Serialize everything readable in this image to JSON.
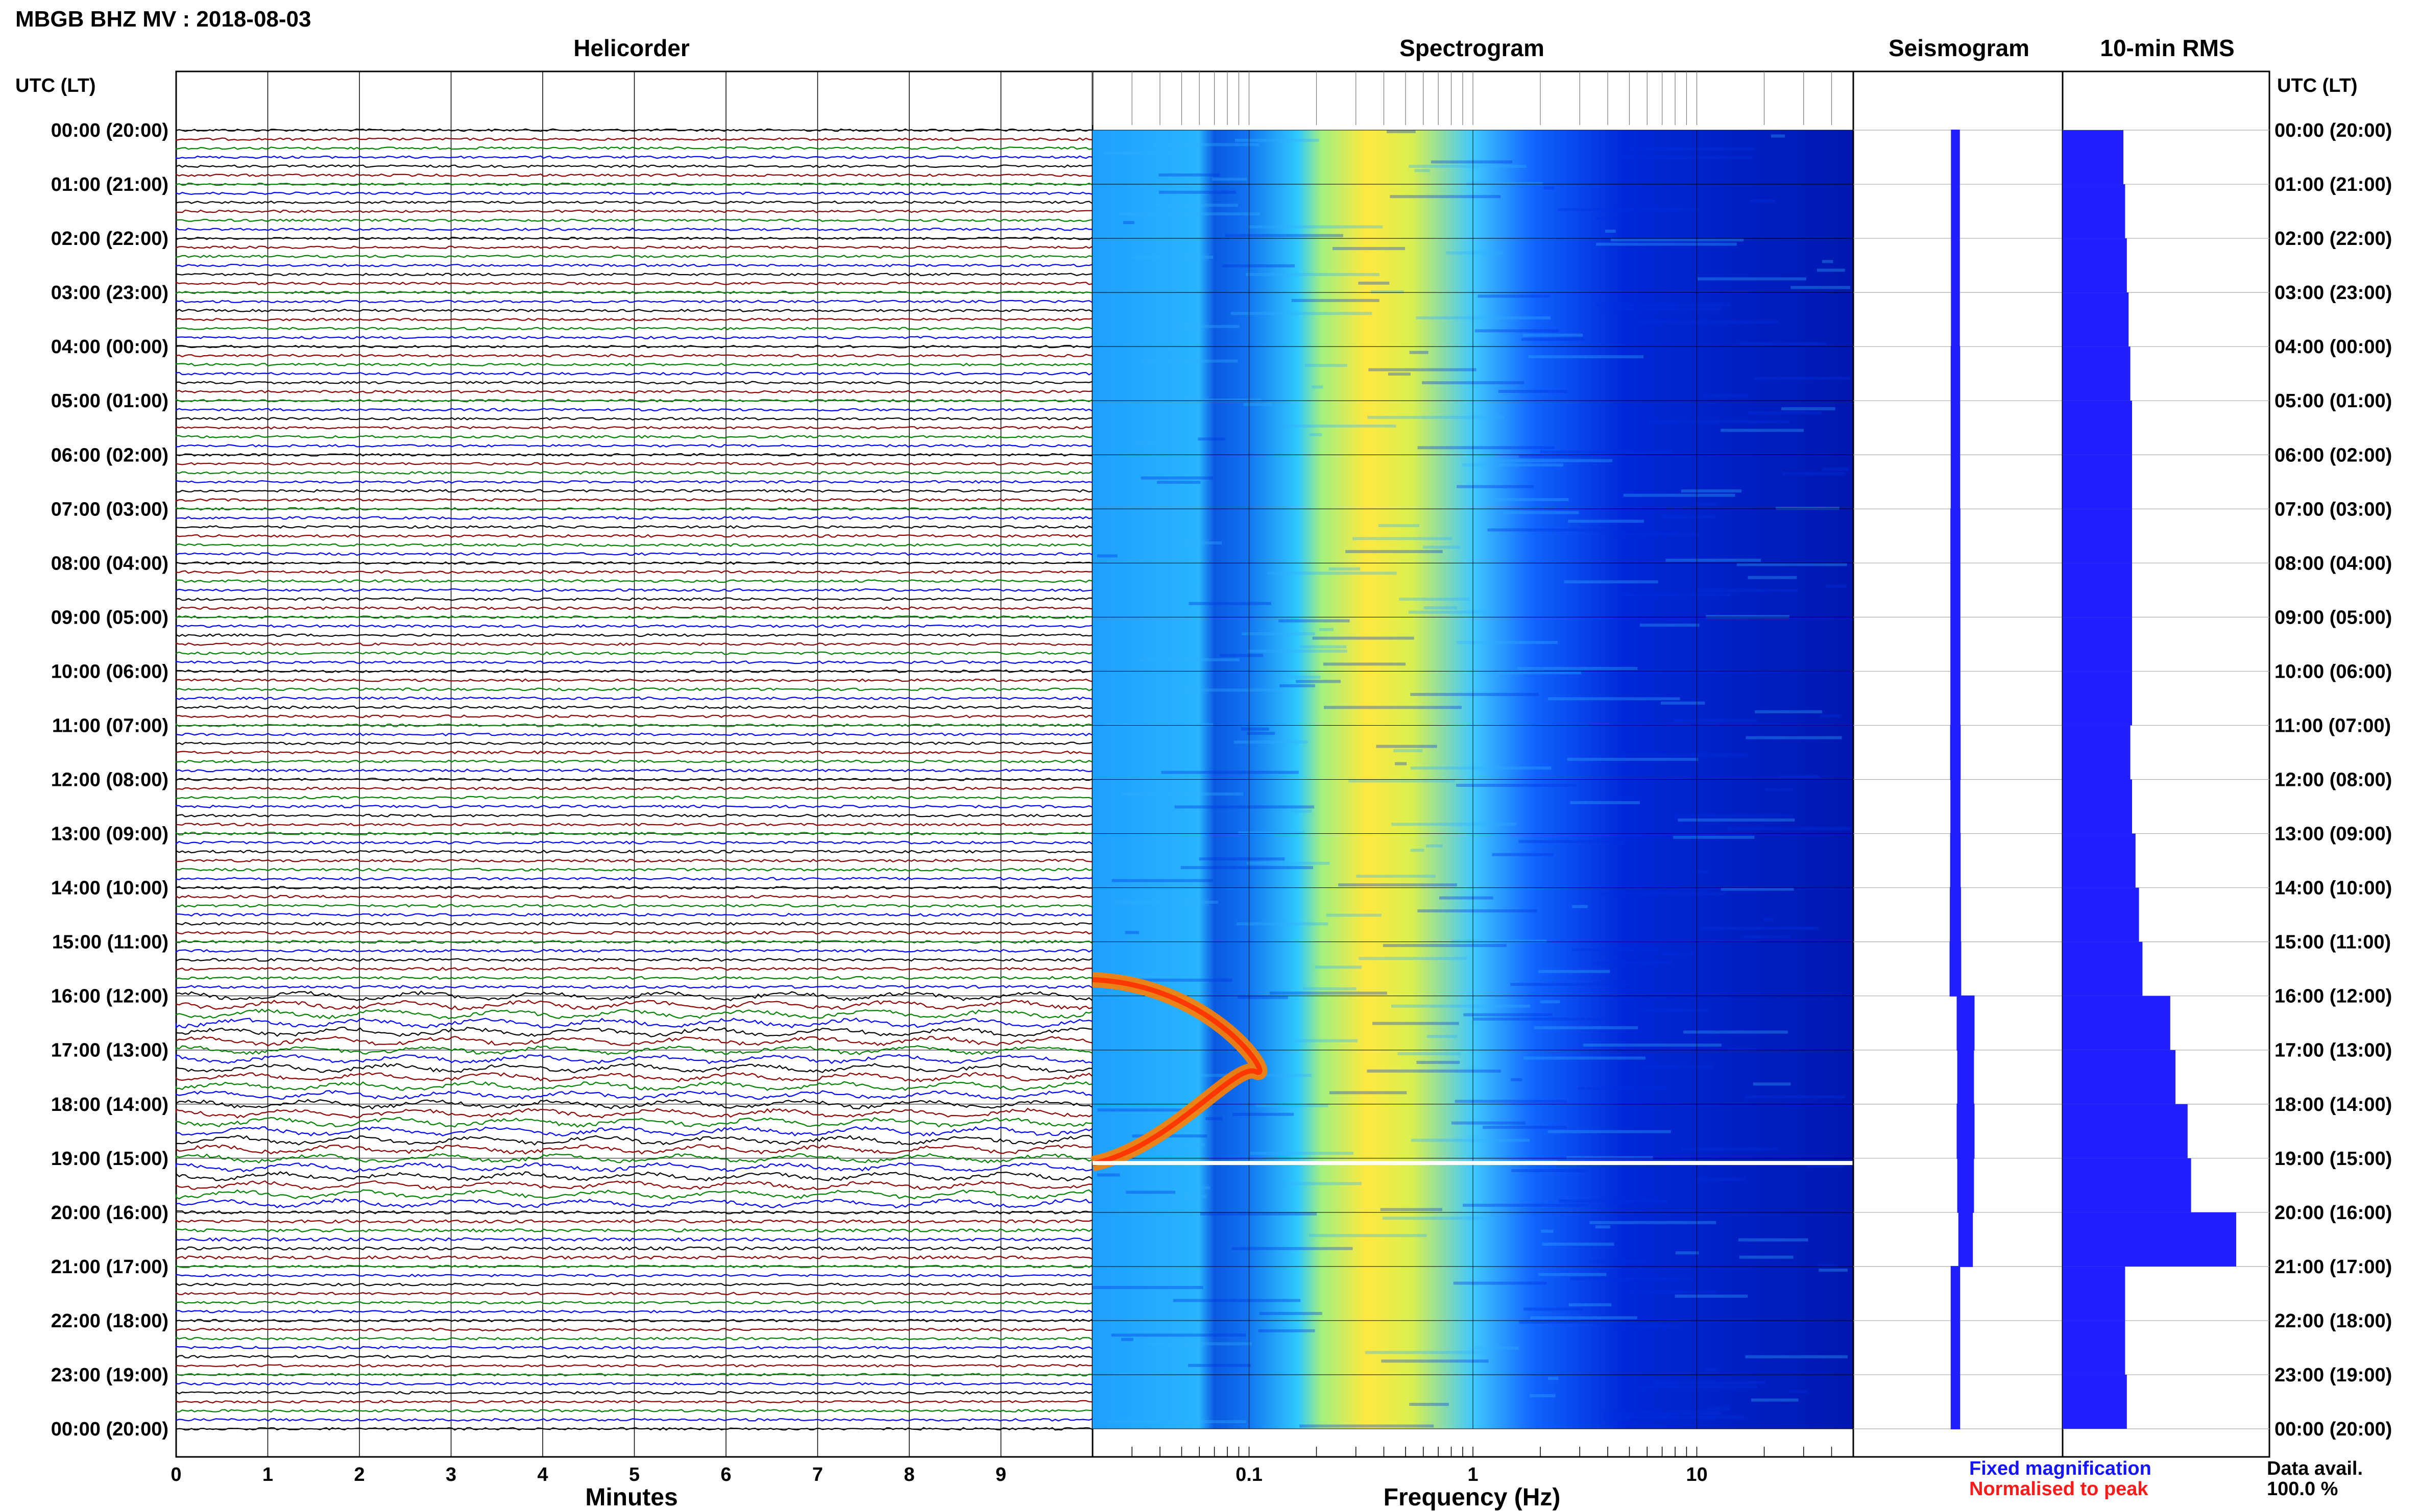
{
  "title": "MBGB BHZ MV : 2018-08-03",
  "panels": {
    "helicorder": "Helicorder",
    "spectrogram": "Spectrogram",
    "seismogram": "Seismogram",
    "rms": "10-min RMS"
  },
  "time_axis": {
    "label": "UTC (LT)",
    "ticks": [
      "00:00 (20:00)",
      "01:00 (21:00)",
      "02:00 (22:00)",
      "03:00 (23:00)",
      "04:00 (00:00)",
      "05:00 (01:00)",
      "06:00 (02:00)",
      "07:00 (03:00)",
      "08:00 (04:00)",
      "09:00 (05:00)",
      "10:00 (06:00)",
      "11:00 (07:00)",
      "12:00 (08:00)",
      "13:00 (09:00)",
      "14:00 (10:00)",
      "15:00 (11:00)",
      "16:00 (12:00)",
      "17:00 (13:00)",
      "18:00 (14:00)",
      "19:00 (15:00)",
      "20:00 (16:00)",
      "21:00 (17:00)",
      "22:00 (18:00)",
      "23:00 (19:00)",
      "00:00 (20:00)"
    ]
  },
  "helicorder_axis": {
    "label": "Minutes",
    "ticks": [
      "0",
      "1",
      "2",
      "3",
      "4",
      "5",
      "6",
      "7",
      "8",
      "9"
    ]
  },
  "spectrogram_axis": {
    "label": "Frequency (Hz)",
    "ticks": [
      "0.1",
      "1",
      "10"
    ]
  },
  "legend": {
    "fixed": "Fixed magnification",
    "normalised": "Normalised to peak",
    "fixed_color": "#1414ff",
    "normalised_color": "#ff1a1a"
  },
  "data_availability": {
    "label": "Data avail.",
    "value": "100.0 %"
  },
  "colors": {
    "trace_cycle": [
      "#000000",
      "#8b0000",
      "#008000",
      "#0000ff"
    ],
    "bar": "#1f1fff",
    "spectrogram_low": "#000090",
    "spectrogram_high": "#ff2000"
  },
  "chart_data": {
    "type": "bar",
    "title": "10-min RMS",
    "ylabel": "UTC (LT)",
    "hours_utc": [
      0,
      1,
      2,
      3,
      4,
      5,
      6,
      7,
      8,
      9,
      10,
      11,
      12,
      13,
      14,
      15,
      16,
      17,
      18,
      19,
      20,
      21,
      22,
      23
    ],
    "rms_relative": [
      0.35,
      0.36,
      0.37,
      0.38,
      0.39,
      0.4,
      0.4,
      0.4,
      0.4,
      0.4,
      0.4,
      0.39,
      0.4,
      0.42,
      0.44,
      0.46,
      0.62,
      0.65,
      0.72,
      0.74,
      1.0,
      0.36,
      0.36,
      0.37
    ],
    "seismogram_envelope_relative": [
      0.14,
      0.14,
      0.14,
      0.14,
      0.15,
      0.15,
      0.15,
      0.16,
      0.16,
      0.16,
      0.16,
      0.17,
      0.16,
      0.17,
      0.18,
      0.19,
      0.3,
      0.28,
      0.3,
      0.28,
      0.24,
      0.15,
      0.15,
      0.15
    ],
    "spectrogram_freq_range_hz": [
      0.02,
      50
    ],
    "microseism_peak_hz": 0.35,
    "event_hours_utc": [
      16,
      19
    ]
  }
}
